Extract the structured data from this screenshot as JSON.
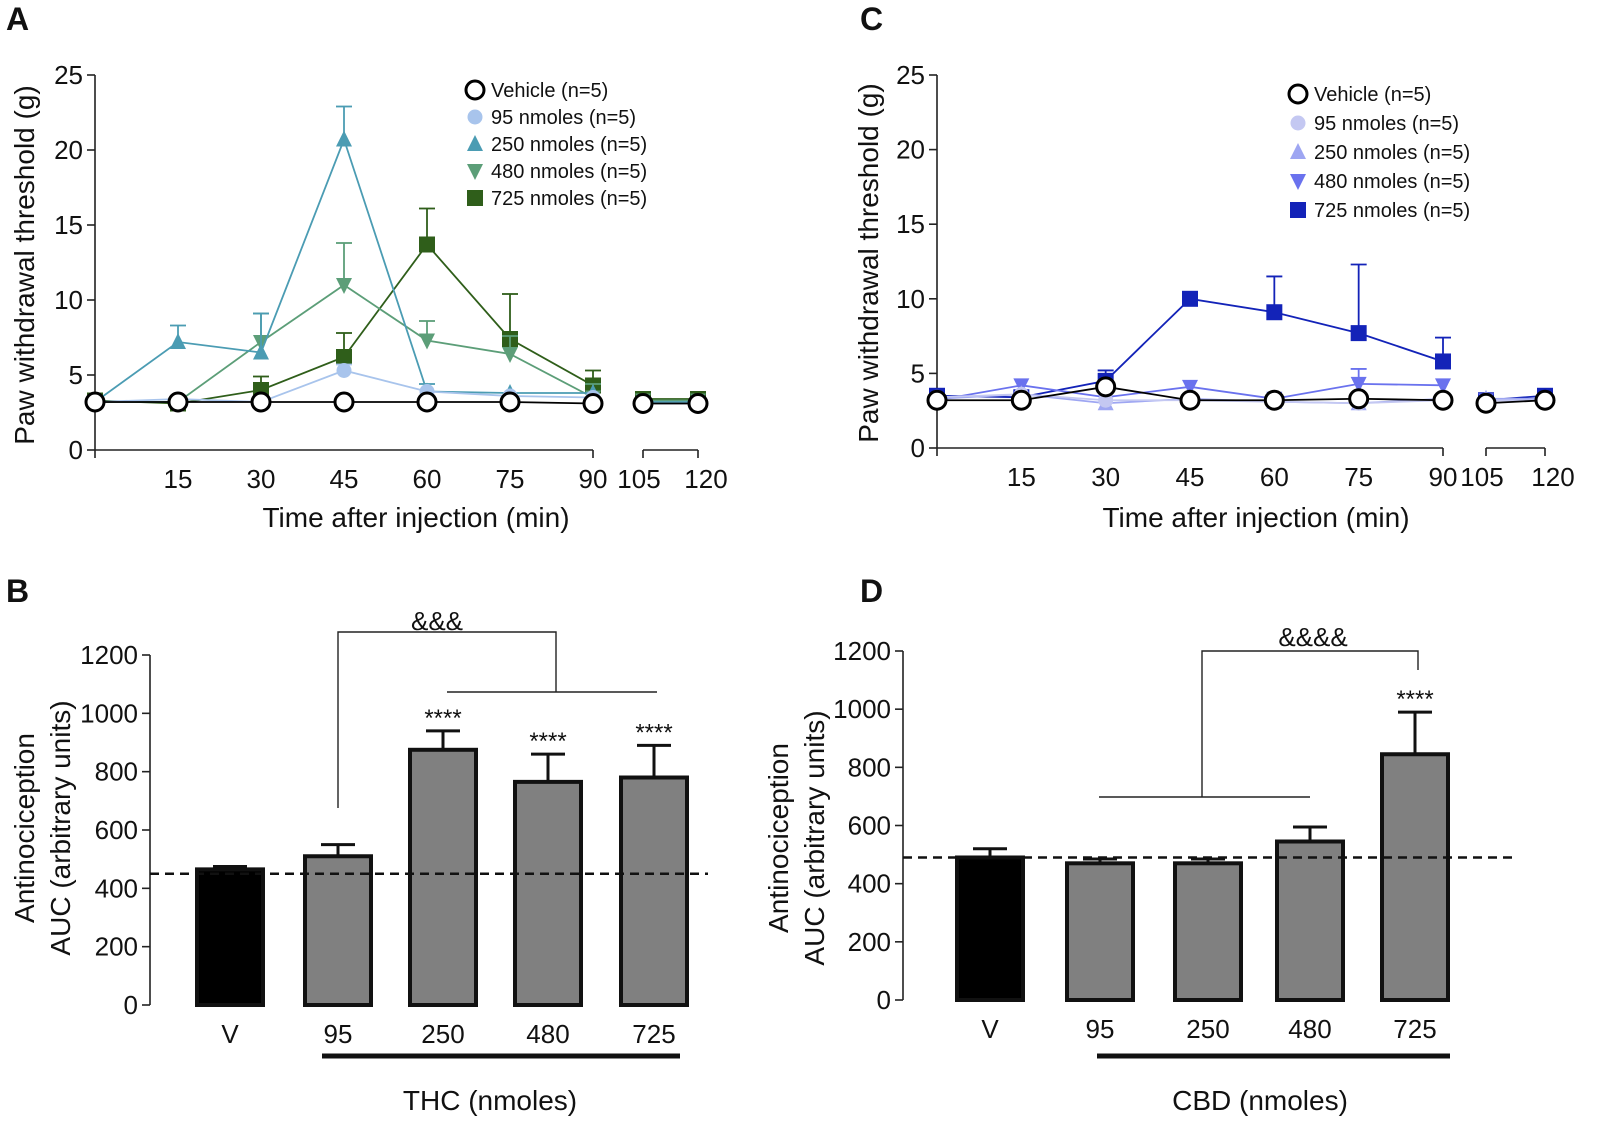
{
  "chart_data": [
    {
      "panel": "A",
      "type": "line",
      "xlabel": "Time after injection (min)",
      "ylabel": "Paw withdrawal threshold (g)",
      "x_ticks": [
        "15",
        "30",
        "45",
        "60",
        "75",
        "90",
        "105",
        "120"
      ],
      "y_ticks": [
        "0",
        "5",
        "10",
        "15",
        "20",
        "25"
      ],
      "ylim": [
        0,
        25
      ],
      "series": [
        {
          "name": "Vehicle (n=5)",
          "marker": "circle-open",
          "color": "#000000",
          "x": [
            0,
            15,
            30,
            45,
            60,
            75,
            90,
            105,
            120
          ],
          "y": [
            3.2,
            3.2,
            3.2,
            3.2,
            3.2,
            3.2,
            3.1,
            3.1,
            3.1
          ],
          "err": [
            0,
            0,
            0,
            0,
            0,
            0,
            0,
            0,
            0
          ]
        },
        {
          "name": "95 nmoles (n=5)",
          "marker": "circle",
          "color": "#a8c4ec",
          "x": [
            0,
            15,
            30,
            45,
            60,
            75,
            90,
            105,
            120
          ],
          "y": [
            3.2,
            3.4,
            3.2,
            5.3,
            3.9,
            3.6,
            3.5,
            3.1,
            3.1
          ],
          "err": [
            0,
            0,
            0,
            0.4,
            0,
            0,
            0,
            0,
            0
          ]
        },
        {
          "name": "250 nmoles (n=5)",
          "marker": "triangle-up",
          "color": "#4b9cb3",
          "x": [
            0,
            15,
            30,
            45,
            60,
            75,
            90,
            105,
            120
          ],
          "y": [
            3.2,
            7.2,
            6.5,
            20.7,
            3.9,
            3.8,
            3.8,
            3.2,
            3.2
          ],
          "err": [
            0,
            1.1,
            2.6,
            2.2,
            0.5,
            0,
            0,
            0,
            0
          ]
        },
        {
          "name": "480 nmoles (n=5)",
          "marker": "triangle-down",
          "color": "#5c9e78",
          "x": [
            0,
            15,
            30,
            45,
            60,
            75,
            90,
            105,
            120
          ],
          "y": [
            3.2,
            3.2,
            7.2,
            11.0,
            7.3,
            6.4,
            3.5,
            3.3,
            3.3
          ],
          "err": [
            0,
            0,
            1.9,
            2.8,
            1.3,
            1.2,
            0.9,
            0,
            0
          ]
        },
        {
          "name": "725 nmoles (n=5)",
          "marker": "square",
          "color": "#2f5e1a",
          "x": [
            0,
            15,
            30,
            45,
            60,
            75,
            90,
            105,
            120
          ],
          "y": [
            3.3,
            3.1,
            4.0,
            6.2,
            13.7,
            7.4,
            4.3,
            3.4,
            3.4
          ],
          "err": [
            0,
            0,
            0.9,
            1.6,
            2.4,
            3.0,
            1.0,
            0,
            0
          ]
        }
      ]
    },
    {
      "panel": "C",
      "type": "line",
      "xlabel": "Time after injection (min)",
      "ylabel": "Paw withdrawal threshold (g)",
      "x_ticks": [
        "15",
        "30",
        "45",
        "60",
        "75",
        "90",
        "105",
        "120"
      ],
      "y_ticks": [
        "0",
        "5",
        "10",
        "15",
        "20",
        "25"
      ],
      "ylim": [
        0,
        25
      ],
      "series": [
        {
          "name": "Vehicle (n=5)",
          "marker": "circle-open",
          "color": "#000000",
          "x": [
            0,
            15,
            30,
            45,
            60,
            75,
            90,
            105,
            120
          ],
          "y": [
            3.2,
            3.2,
            4.1,
            3.2,
            3.2,
            3.3,
            3.2,
            3.0,
            3.2
          ],
          "err": [
            0,
            0,
            0,
            0,
            0,
            0,
            0,
            0,
            0
          ]
        },
        {
          "name": "95 nmoles (n=5)",
          "marker": "circle",
          "color": "#c4c8f2",
          "x": [
            0,
            15,
            30,
            45,
            60,
            75,
            90,
            105,
            120
          ],
          "y": [
            3.4,
            3.6,
            3.2,
            3.2,
            3.1,
            3.0,
            3.2,
            3.2,
            3.2
          ],
          "err": [
            0,
            0,
            0,
            0,
            0,
            0,
            0,
            0,
            0
          ]
        },
        {
          "name": "250 nmoles (n=5)",
          "marker": "triangle-up",
          "color": "#9ea6f2",
          "x": [
            0,
            15,
            30,
            45,
            60,
            75,
            90,
            105,
            120
          ],
          "y": [
            3.3,
            3.6,
            3.0,
            3.3,
            3.1,
            3.0,
            3.3,
            3.3,
            3.3
          ],
          "err": [
            0,
            0,
            0,
            0,
            0,
            0,
            0,
            0,
            0
          ]
        },
        {
          "name": "480 nmoles (n=5)",
          "marker": "triangle-down",
          "color": "#6a72ee",
          "x": [
            0,
            15,
            30,
            45,
            60,
            75,
            90,
            105,
            120
          ],
          "y": [
            3.2,
            4.2,
            3.4,
            4.1,
            3.3,
            4.3,
            4.2,
            3.2,
            3.2
          ],
          "err": [
            0,
            0,
            0,
            0,
            0,
            1.0,
            0,
            0,
            0
          ]
        },
        {
          "name": "725 nmoles (n=5)",
          "marker": "square",
          "color": "#1323b8",
          "x": [
            0,
            15,
            30,
            45,
            60,
            75,
            90,
            105,
            120
          ],
          "y": [
            3.5,
            3.4,
            4.5,
            10.0,
            9.1,
            7.7,
            5.8,
            3.2,
            3.5
          ],
          "err": [
            0,
            0,
            0.7,
            0,
            2.4,
            4.6,
            1.6,
            0,
            0
          ]
        }
      ]
    },
    {
      "panel": "B",
      "type": "bar",
      "ylabel_line1": "Antinociception",
      "ylabel_line2": "AUC (arbitrary units)",
      "group_label": "THC (nmoles)",
      "categories": [
        "V",
        "95",
        "250",
        "480",
        "725"
      ],
      "values": [
        465,
        510,
        875,
        765,
        780
      ],
      "errors": [
        10,
        40,
        65,
        95,
        110
      ],
      "colors": [
        "#000000",
        "#808080",
        "#808080",
        "#808080",
        "#808080"
      ],
      "significance": [
        "",
        "",
        "****",
        "****",
        "****"
      ],
      "y_ticks": [
        "0",
        "200",
        "400",
        "600",
        "800",
        "1000",
        "1200"
      ],
      "ylim": [
        0,
        1200
      ],
      "reference_line": 450,
      "bracket_label": "&&&"
    },
    {
      "panel": "D",
      "type": "bar",
      "ylabel_line1": "Antinociception",
      "ylabel_line2": "AUC (arbitrary units)",
      "group_label": "CBD (nmoles)",
      "categories": [
        "V",
        "95",
        "250",
        "480",
        "725"
      ],
      "values": [
        490,
        470,
        470,
        545,
        845
      ],
      "errors": [
        30,
        15,
        15,
        50,
        145
      ],
      "colors": [
        "#000000",
        "#808080",
        "#808080",
        "#808080",
        "#808080"
      ],
      "significance": [
        "",
        "",
        "",
        "",
        "****"
      ],
      "y_ticks": [
        "0",
        "200",
        "400",
        "600",
        "800",
        "1000",
        "1200"
      ],
      "ylim": [
        0,
        1200
      ],
      "reference_line": 490,
      "bracket_label": "&&&&"
    }
  ]
}
